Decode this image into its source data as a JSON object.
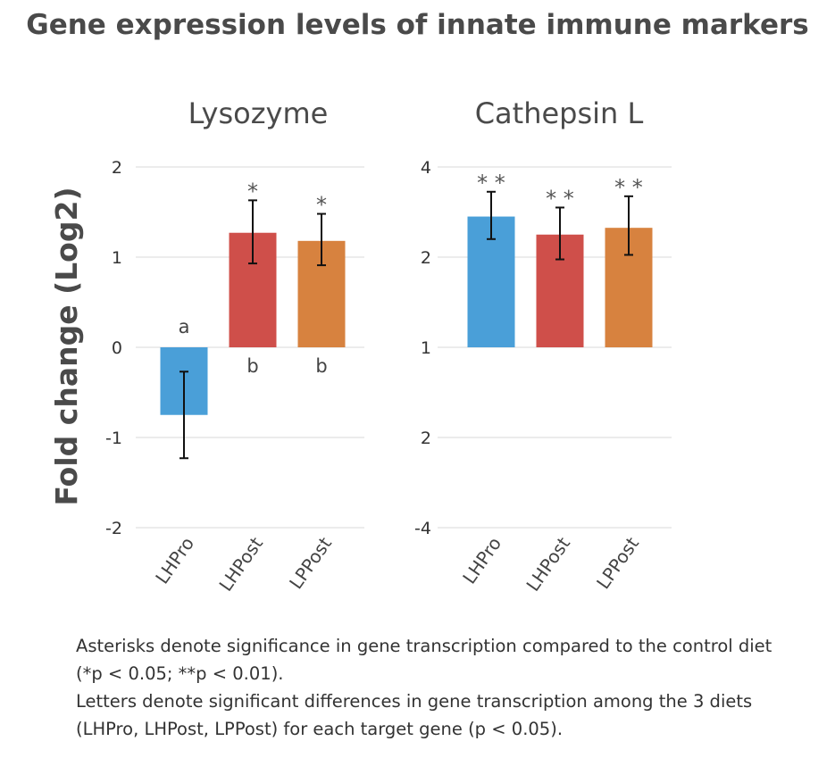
{
  "title": "Gene expression levels of innate immune markers",
  "chart_data": [
    {
      "type": "bar",
      "title": "Lysozyme",
      "ylabel": "Fold change (Log2)",
      "xlabel": "",
      "categories": [
        "LHPro",
        "LHPost",
        "LPPost"
      ],
      "yticks": [
        "2",
        "1",
        "0",
        "-1",
        "-2"
      ],
      "ylim": [
        -2,
        2
      ],
      "baseline": 0,
      "values": [
        -0.75,
        1.27,
        1.18
      ],
      "errors": [
        [
          -1.23,
          -0.27
        ],
        [
          0.93,
          1.63
        ],
        [
          0.91,
          1.48
        ]
      ],
      "colors": [
        "#4a9fd8",
        "#cf4f4a",
        "#d7823f"
      ],
      "significance": [
        "",
        "*",
        "*"
      ],
      "letters": [
        "a",
        "b",
        "b"
      ]
    },
    {
      "type": "bar",
      "title": "Cathepsin L",
      "ylabel": "Fold change (Log2)",
      "xlabel": "",
      "categories": [
        "LHPro",
        "LHPost",
        "LPPost"
      ],
      "yticks": [
        "4",
        "2",
        "1",
        "2",
        "-4"
      ],
      "ylim": [
        -4,
        4
      ],
      "baseline": 0,
      "values": [
        2.9,
        2.5,
        2.65
      ],
      "errors": [
        [
          2.4,
          3.45
        ],
        [
          1.95,
          3.1
        ],
        [
          2.05,
          3.35
        ]
      ],
      "colors": [
        "#4a9fd8",
        "#cf4f4a",
        "#d7823f"
      ],
      "significance": [
        "* *",
        "* *",
        "* *"
      ],
      "letters": [
        "",
        "",
        ""
      ]
    }
  ],
  "notes": {
    "line1": "Asterisks denote significance in gene transcription compared to the control diet (*p < 0.05; **p < 0.01).",
    "line2": "Letters denote significant differences in gene transcription among the 3 diets (LHPro, LHPost, LPPost) for each target gene (p < 0.05)."
  }
}
